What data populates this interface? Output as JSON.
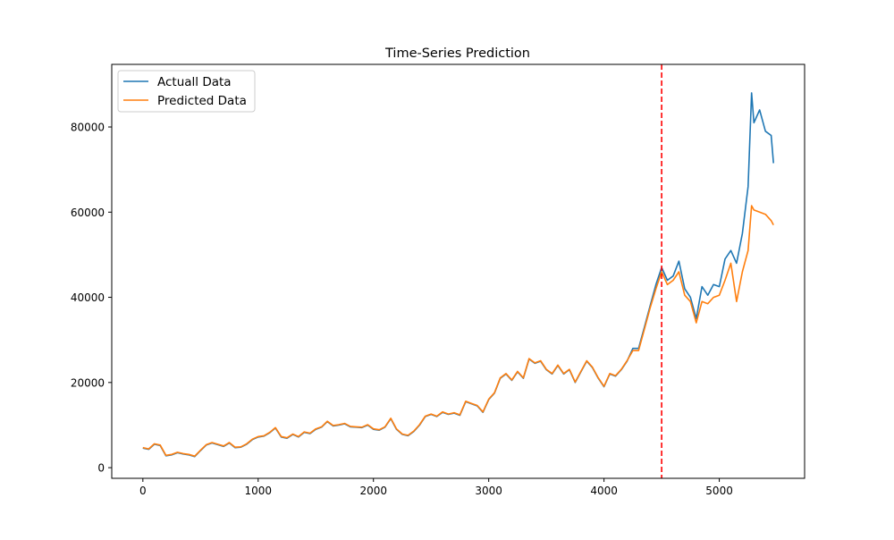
{
  "chart_data": {
    "type": "line",
    "title": "Time-Series Prediction",
    "xlabel": "",
    "ylabel": "",
    "xlim": [
      -270,
      5740
    ],
    "ylim": [
      -2500,
      94700
    ],
    "xticks": [
      0,
      1000,
      2000,
      3000,
      4000,
      5000
    ],
    "yticks": [
      0,
      20000,
      40000,
      60000,
      80000
    ],
    "grid": false,
    "legend": "top-left",
    "x": [
      0,
      50,
      100,
      150,
      200,
      250,
      300,
      350,
      400,
      450,
      500,
      550,
      600,
      650,
      700,
      750,
      800,
      850,
      900,
      950,
      1000,
      1050,
      1100,
      1150,
      1200,
      1250,
      1300,
      1350,
      1400,
      1450,
      1500,
      1550,
      1600,
      1650,
      1700,
      1750,
      1800,
      1850,
      1900,
      1950,
      2000,
      2050,
      2100,
      2150,
      2200,
      2250,
      2300,
      2350,
      2400,
      2450,
      2500,
      2550,
      2600,
      2650,
      2700,
      2750,
      2800,
      2850,
      2900,
      2950,
      3000,
      3050,
      3100,
      3150,
      3200,
      3250,
      3300,
      3350,
      3400,
      3450,
      3500,
      3550,
      3600,
      3650,
      3700,
      3750,
      3800,
      3850,
      3900,
      3950,
      4000,
      4050,
      4100,
      4150,
      4200,
      4250,
      4300,
      4350,
      4400,
      4450,
      4500,
      4550,
      4600,
      4650,
      4700,
      4750,
      4800,
      4850,
      4900,
      4950,
      5000,
      5050,
      5100,
      5150,
      5200,
      5250,
      5280,
      5300,
      5350,
      5400,
      5450,
      5470
    ],
    "series": [
      {
        "name": "Actuall Data",
        "color": "#1f77b4",
        "values": [
          4600,
          4300,
          5500,
          5200,
          2800,
          3000,
          3500,
          3200,
          3000,
          2600,
          4000,
          5300,
          5800,
          5400,
          5000,
          5800,
          4700,
          4800,
          5500,
          6600,
          7200,
          7400,
          8200,
          9300,
          7200,
          6900,
          7800,
          7200,
          8300,
          8000,
          9000,
          9500,
          10800,
          9800,
          10000,
          10300,
          9600,
          9500,
          9400,
          10000,
          9000,
          8800,
          9500,
          11500,
          9000,
          7800,
          7500,
          8500,
          10000,
          12000,
          12500,
          12000,
          13000,
          12500,
          12800,
          12300,
          15500,
          15000,
          14500,
          13000,
          16000,
          17500,
          21000,
          22000,
          20500,
          22500,
          21000,
          25500,
          24500,
          25000,
          23000,
          22000,
          24000,
          22000,
          23000,
          20000,
          22500,
          25000,
          23500,
          21000,
          19000,
          22000,
          21500,
          23000,
          25000,
          28000,
          28000,
          33000,
          38000,
          43000,
          47000,
          44000,
          45000,
          48500,
          42000,
          40000,
          35000,
          42500,
          40500,
          43000,
          42500,
          49000,
          51000,
          48000,
          55000,
          66000,
          88000,
          81000,
          84000,
          79000,
          78000,
          71500
        ]
      },
      {
        "name": "Predicted Data",
        "color": "#ff7f0e",
        "values": [
          4700,
          4400,
          5600,
          5300,
          2900,
          3100,
          3600,
          3300,
          3100,
          2700,
          4100,
          5400,
          5900,
          5500,
          5100,
          5900,
          4800,
          4900,
          5600,
          6700,
          7300,
          7500,
          8300,
          9400,
          7300,
          7000,
          7900,
          7300,
          8400,
          8100,
          9100,
          9600,
          10900,
          9900,
          10100,
          10400,
          9700,
          9600,
          9500,
          10100,
          9100,
          8900,
          9600,
          11600,
          9100,
          7900,
          7600,
          8600,
          10100,
          12100,
          12600,
          12100,
          13100,
          12600,
          12900,
          12400,
          15600,
          15100,
          14600,
          13100,
          16100,
          17600,
          21100,
          22100,
          20600,
          22600,
          21100,
          25600,
          24600,
          25100,
          23100,
          22100,
          24100,
          22100,
          23100,
          20100,
          22600,
          25100,
          23600,
          21100,
          19100,
          22100,
          21600,
          23100,
          25100,
          27500,
          27500,
          32500,
          37500,
          42000,
          46000,
          43000,
          44000,
          46000,
          40500,
          39000,
          34000,
          39000,
          38500,
          40000,
          40500,
          44000,
          48000,
          39000,
          46000,
          51000,
          61500,
          60500,
          60000,
          59500,
          58000,
          57000
        ]
      }
    ],
    "annotations": [
      {
        "type": "vline",
        "x": 4500,
        "color": "#ff0000",
        "style": "dashed"
      }
    ]
  }
}
